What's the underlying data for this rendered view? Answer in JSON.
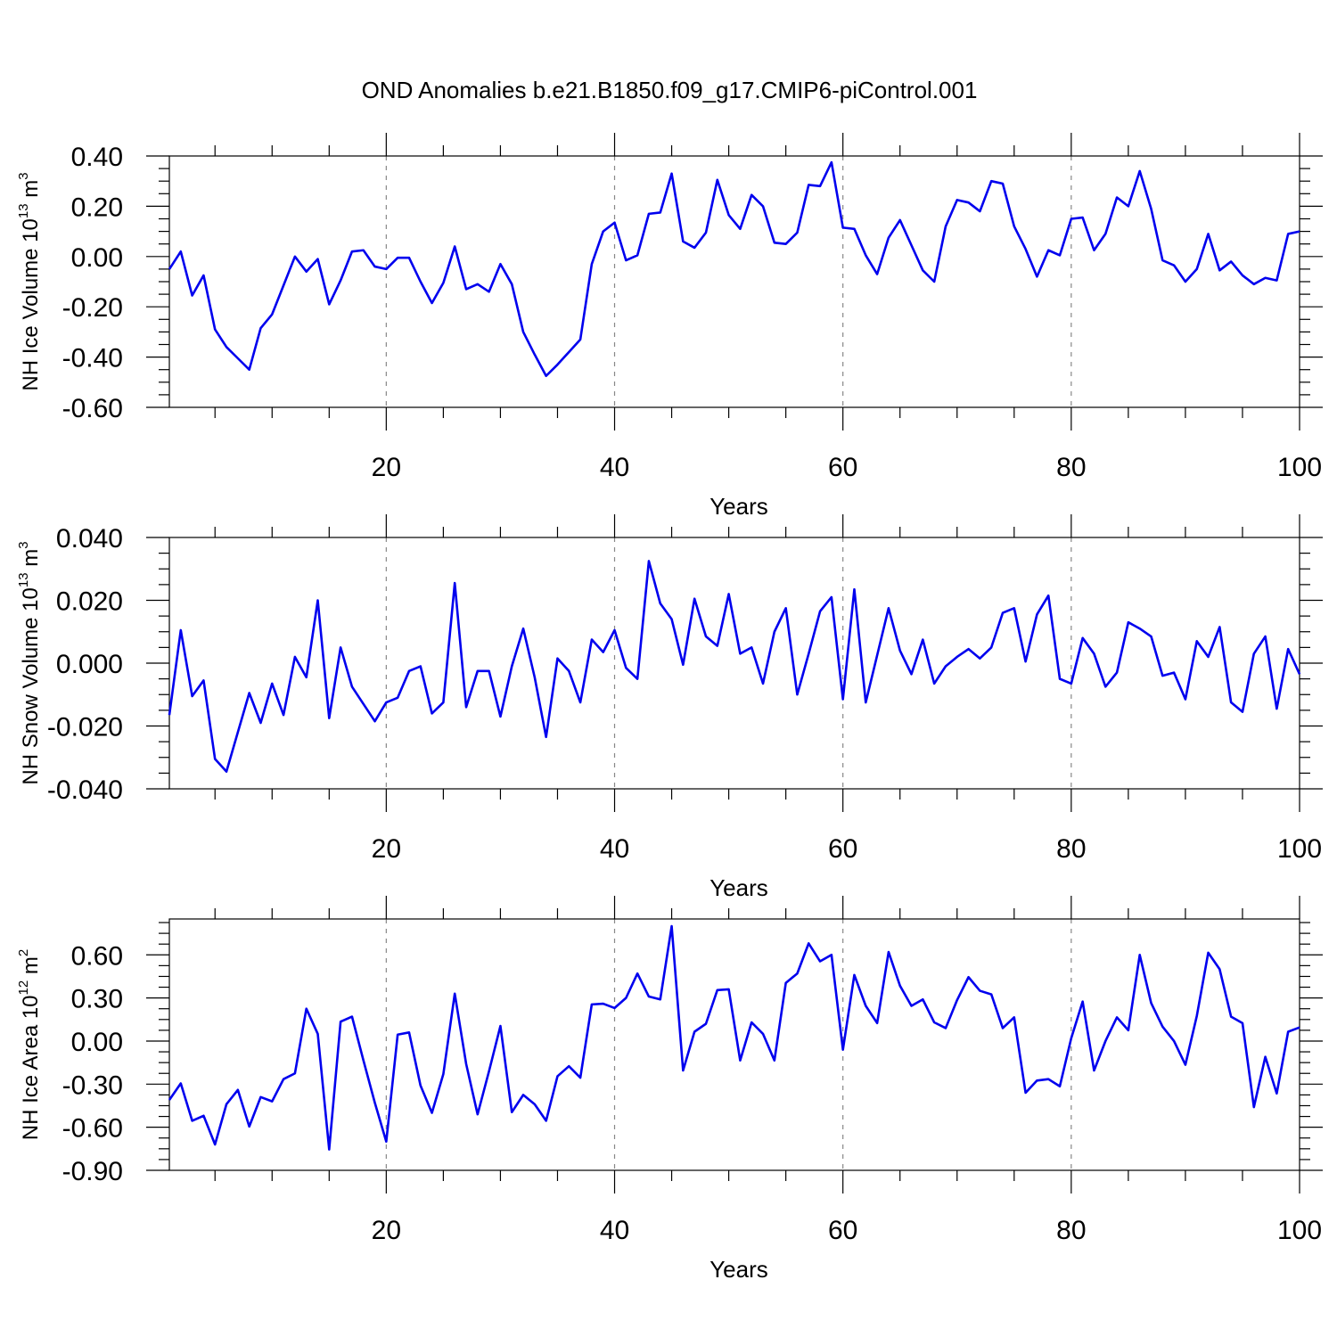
{
  "title": "OND Anomalies b.e21.B1850.f09_g17.CMIP6-piControl.001",
  "colors": {
    "series": "#0000ee",
    "frame": "#000000",
    "grid": "#888888"
  },
  "chart_data": [
    {
      "type": "line",
      "title": "",
      "xlabel": "Years",
      "ylabel": {
        "prefix": "NH Ice Volume 10",
        "exp": "13",
        "unit": " m",
        "unit_exp": "3"
      },
      "xlim": [
        1,
        100
      ],
      "ylim": [
        -0.6,
        0.4
      ],
      "xticks": [
        20,
        40,
        60,
        80,
        100
      ],
      "xtick_labels": [
        "20",
        "40",
        "60",
        "80",
        "100"
      ],
      "yticks": [
        -0.6,
        -0.4,
        -0.2,
        0.0,
        0.2,
        0.4
      ],
      "ytick_labels": [
        "-0.60",
        "-0.40",
        "-0.20",
        "0.00",
        "0.20",
        "0.40"
      ],
      "grid": "vertical dashed at major x ticks",
      "series": [
        {
          "x_start": 1,
          "values": [
            -0.05,
            0.02,
            -0.155,
            -0.075,
            -0.29,
            -0.36,
            -0.405,
            -0.45,
            -0.285,
            -0.23,
            -0.115,
            0.0,
            -0.06,
            -0.01,
            -0.19,
            -0.095,
            0.02,
            0.025,
            -0.04,
            -0.05,
            -0.005,
            -0.005,
            -0.1,
            -0.185,
            -0.105,
            0.04,
            -0.13,
            -0.11,
            -0.14,
            -0.03,
            -0.11,
            -0.3,
            -0.39,
            -0.475,
            -0.43,
            -0.38,
            -0.33,
            -0.03,
            0.1,
            0.135,
            -0.015,
            0.005,
            0.17,
            0.175,
            0.33,
            0.06,
            0.035,
            0.095,
            0.305,
            0.165,
            0.11,
            0.245,
            0.2,
            0.055,
            0.05,
            0.095,
            0.285,
            0.28,
            0.375,
            0.115,
            0.11,
            0.005,
            -0.07,
            0.075,
            0.145,
            0.045,
            -0.055,
            -0.1,
            0.12,
            0.225,
            0.215,
            0.18,
            0.3,
            0.29,
            0.12,
            0.03,
            -0.08,
            0.025,
            0.005,
            0.15,
            0.155,
            0.025,
            0.09,
            0.235,
            0.2,
            0.34,
            0.19,
            -0.015,
            -0.035,
            -0.1,
            -0.05,
            0.09,
            -0.055,
            -0.02,
            -0.075,
            -0.11,
            -0.085,
            -0.095,
            0.09,
            0.1
          ]
        }
      ]
    },
    {
      "type": "line",
      "title": "",
      "xlabel": "Years",
      "ylabel": {
        "prefix": "NH Snow Volume 10",
        "exp": "13",
        "unit": " m",
        "unit_exp": "3"
      },
      "xlim": [
        1,
        100
      ],
      "ylim": [
        -0.04,
        0.04
      ],
      "xticks": [
        20,
        40,
        60,
        80,
        100
      ],
      "xtick_labels": [
        "20",
        "40",
        "60",
        "80",
        "100"
      ],
      "yticks": [
        -0.04,
        -0.02,
        0.0,
        0.02,
        0.04
      ],
      "ytick_labels": [
        "-0.040",
        "-0.020",
        "0.000",
        "0.020",
        "0.040"
      ],
      "grid": "vertical dashed at major x ticks",
      "series": [
        {
          "x_start": 1,
          "values": [
            -0.0165,
            0.0105,
            -0.0105,
            -0.0055,
            -0.0305,
            -0.0345,
            -0.022,
            -0.0095,
            -0.019,
            -0.0065,
            -0.0165,
            0.002,
            -0.0045,
            0.02,
            -0.0175,
            0.005,
            -0.0075,
            -0.013,
            -0.0185,
            -0.0125,
            -0.011,
            -0.0025,
            -0.001,
            -0.016,
            -0.0125,
            0.0255,
            -0.014,
            -0.0025,
            -0.0025,
            -0.017,
            -0.001,
            0.011,
            -0.0045,
            -0.0235,
            0.0015,
            -0.0025,
            -0.0125,
            0.0075,
            0.0035,
            0.0105,
            -0.0015,
            -0.005,
            0.0325,
            0.019,
            0.014,
            -0.0005,
            0.0205,
            0.0085,
            0.0055,
            0.022,
            0.003,
            0.005,
            -0.0065,
            0.01,
            0.0175,
            -0.01,
            0.003,
            0.0165,
            0.021,
            -0.0115,
            0.0235,
            -0.0125,
            0.0025,
            0.0175,
            0.004,
            -0.0035,
            0.0075,
            -0.0065,
            -0.001,
            0.002,
            0.0045,
            0.0015,
            0.005,
            0.016,
            0.0175,
            0.0005,
            0.0155,
            0.0215,
            -0.005,
            -0.0065,
            0.008,
            0.003,
            -0.0075,
            -0.003,
            0.013,
            0.011,
            0.0085,
            -0.004,
            -0.003,
            -0.0115,
            0.007,
            0.002,
            0.0115,
            -0.0125,
            -0.0155,
            0.003,
            0.0085,
            -0.0145,
            0.0045,
            -0.0035
          ]
        }
      ]
    },
    {
      "type": "line",
      "title": "",
      "xlabel": "Years",
      "ylabel": {
        "prefix": "NH Ice Area 10",
        "exp": "12",
        "unit": " m",
        "unit_exp": "2"
      },
      "xlim": [
        1,
        100
      ],
      "ylim": [
        -0.9,
        0.85
      ],
      "xticks": [
        20,
        40,
        60,
        80,
        100
      ],
      "xtick_labels": [
        "20",
        "40",
        "60",
        "80",
        "100"
      ],
      "yticks": [
        -0.9,
        -0.6,
        -0.3,
        0.0,
        0.3,
        0.6
      ],
      "ytick_labels": [
        "-0.90",
        "-0.60",
        "-0.30",
        "0.00",
        "0.30",
        "0.60"
      ],
      "grid": "vertical dashed at major x ticks",
      "series": [
        {
          "x_start": 1,
          "values": [
            -0.41,
            -0.295,
            -0.555,
            -0.52,
            -0.72,
            -0.44,
            -0.34,
            -0.595,
            -0.39,
            -0.42,
            -0.265,
            -0.225,
            0.225,
            0.05,
            -0.755,
            0.135,
            0.17,
            -0.135,
            -0.43,
            -0.7,
            0.045,
            0.06,
            -0.31,
            -0.5,
            -0.23,
            0.33,
            -0.16,
            -0.51,
            -0.21,
            0.105,
            -0.495,
            -0.375,
            -0.44,
            -0.555,
            -0.245,
            -0.175,
            -0.255,
            0.255,
            0.26,
            0.23,
            0.3,
            0.47,
            0.31,
            0.29,
            0.8,
            -0.205,
            0.065,
            0.12,
            0.355,
            0.36,
            -0.135,
            0.13,
            0.05,
            -0.135,
            0.405,
            0.47,
            0.68,
            0.555,
            0.6,
            -0.06,
            0.46,
            0.245,
            0.125,
            0.62,
            0.385,
            0.245,
            0.29,
            0.13,
            0.09,
            0.285,
            0.445,
            0.35,
            0.325,
            0.09,
            0.165,
            -0.36,
            -0.275,
            -0.265,
            -0.315,
            0.02,
            0.275,
            -0.205,
            0.0,
            0.165,
            0.075,
            0.6,
            0.265,
            0.1,
            0.0,
            -0.165,
            0.175,
            0.615,
            0.5,
            0.17,
            0.125,
            -0.46,
            -0.11,
            -0.365,
            0.065,
            0.095
          ]
        }
      ]
    }
  ]
}
